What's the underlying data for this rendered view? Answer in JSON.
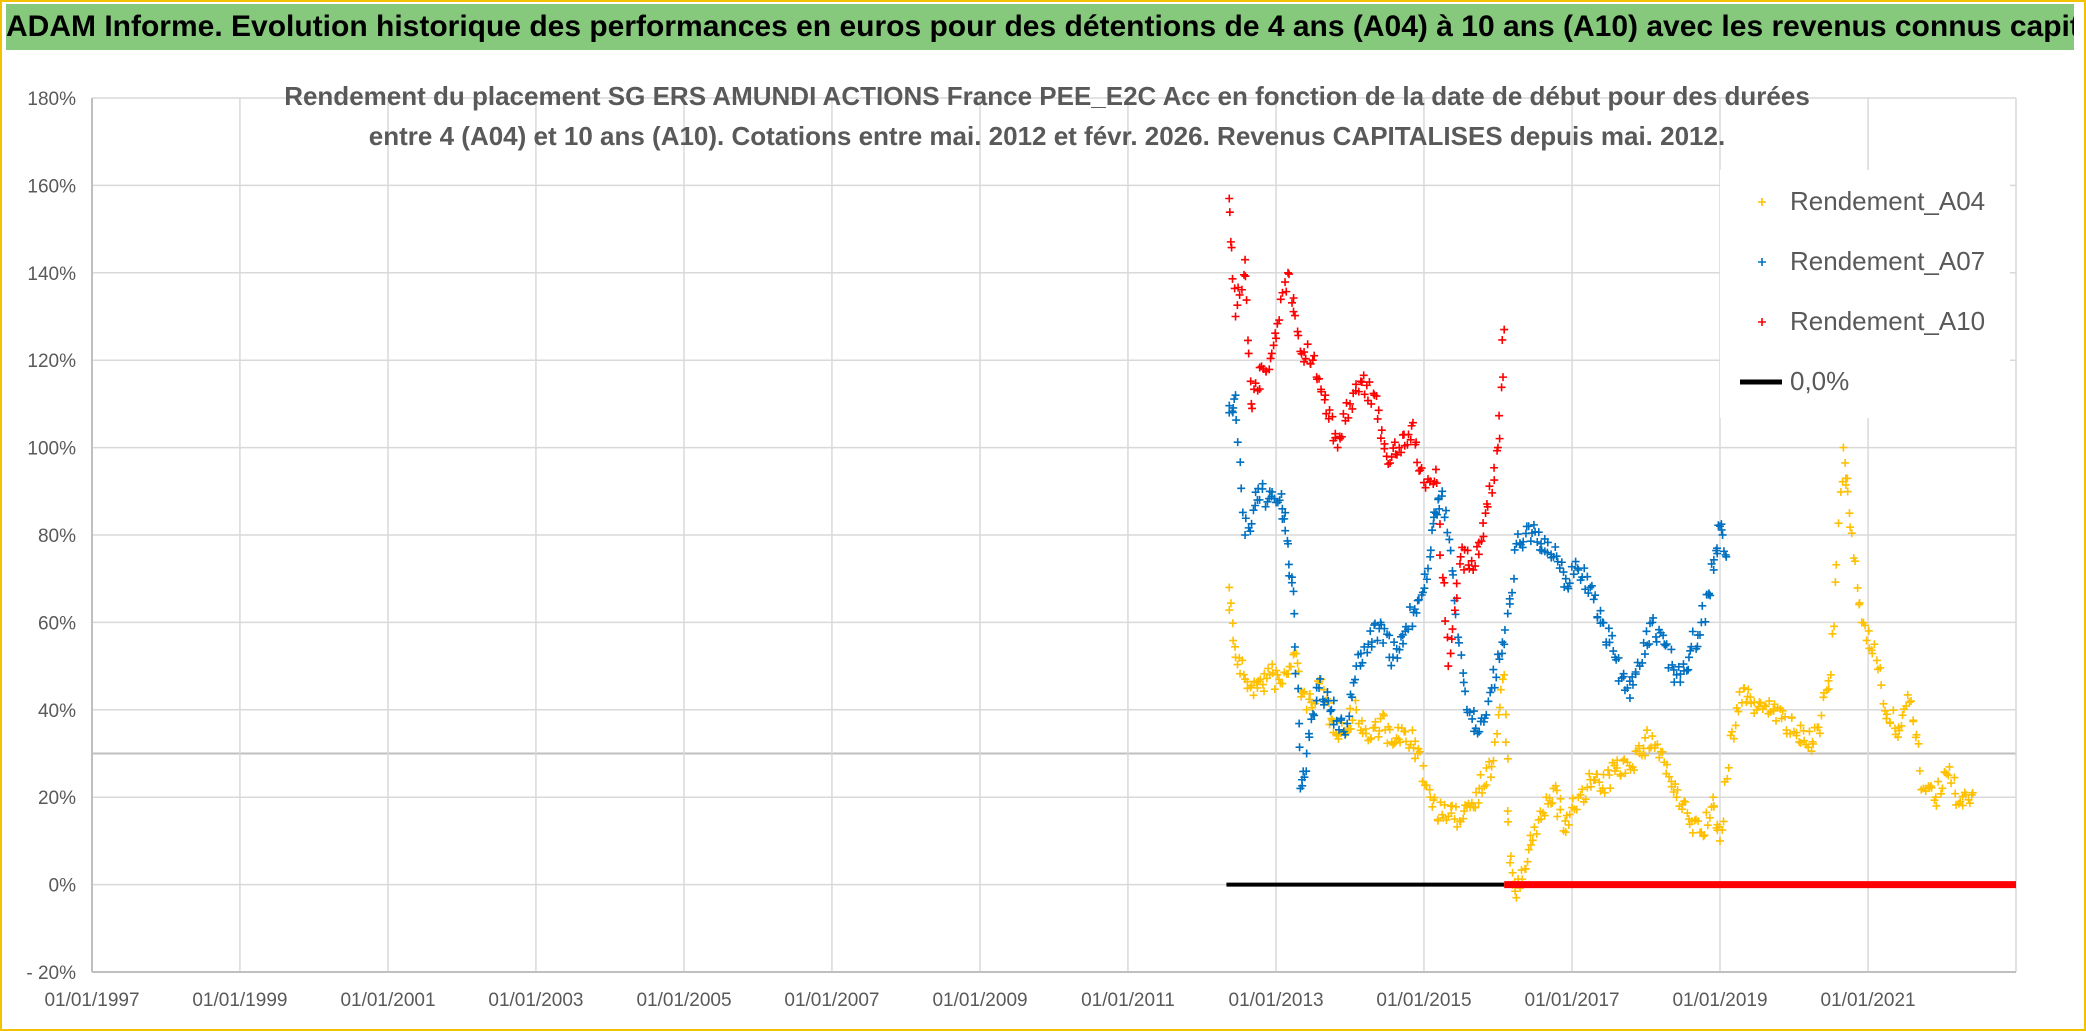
{
  "header": {
    "banner": "ADAM Informe. Evolution historique des performances en euros pour des détentions de 4 ans (A04) à 10 ans (A10) avec les revenus connus capitalisés"
  },
  "colors": {
    "A04": "#ffc000",
    "A07": "#0070c0",
    "A10": "#ff0000",
    "zero": "#000000",
    "banner": "#86c97d",
    "frame": "#f2c200"
  },
  "chart_data": {
    "type": "scatter",
    "title_lines": [
      "Rendement du placement SG ERS AMUNDI ACTIONS France PEE_E2C Acc en fonction de la date de début pour des durées",
      "entre 4 (A04) et 10 ans (A10). Cotations entre mai. 2012 et févr. 2026. Revenus CAPITALISES depuis mai. 2012."
    ],
    "xlabel": "",
    "ylabel": "",
    "x_ticks": [
      "01/01/1997",
      "01/01/1999",
      "01/01/2001",
      "01/01/2003",
      "01/01/2005",
      "01/01/2007",
      "01/01/2009",
      "01/01/2011",
      "01/01/2013",
      "01/01/2015",
      "01/01/2017",
      "01/01/2019",
      "01/01/2021"
    ],
    "y_ticks": [
      "- 20%",
      "0%",
      "20%",
      "40%",
      "60%",
      "80%",
      "100%",
      "120%",
      "140%",
      "160%",
      "180%"
    ],
    "xlim": [
      "1997-01-01",
      "2023-01-01"
    ],
    "ylim": [
      -20,
      180
    ],
    "grid": true,
    "legend_position": "top-right",
    "series": [
      {
        "name": "Rendement_A04",
        "marker": "+",
        "points": [
          [
            "2012-05-15",
            68
          ],
          [
            "2012-06-15",
            52
          ],
          [
            "2012-08-01",
            47
          ],
          [
            "2012-10-01",
            45
          ],
          [
            "2012-12-01",
            48
          ],
          [
            "2013-02-01",
            46
          ],
          [
            "2013-04-01",
            53
          ],
          [
            "2013-06-01",
            40
          ],
          [
            "2013-08-01",
            46
          ],
          [
            "2013-10-01",
            38
          ],
          [
            "2013-12-01",
            35
          ],
          [
            "2014-02-01",
            40
          ],
          [
            "2014-04-01",
            33
          ],
          [
            "2014-06-01",
            38
          ],
          [
            "2014-08-01",
            32
          ],
          [
            "2014-10-01",
            35
          ],
          [
            "2014-12-01",
            30
          ],
          [
            "2015-02-01",
            20
          ],
          [
            "2015-04-01",
            16
          ],
          [
            "2015-06-01",
            15
          ],
          [
            "2015-08-01",
            18
          ],
          [
            "2015-10-01",
            22
          ],
          [
            "2015-12-01",
            27
          ],
          [
            "2016-02-01",
            48
          ],
          [
            "2016-03-01",
            5
          ],
          [
            "2016-04-01",
            -3
          ],
          [
            "2016-06-01",
            8
          ],
          [
            "2016-08-01",
            15
          ],
          [
            "2016-10-01",
            22
          ],
          [
            "2016-12-01",
            12
          ],
          [
            "2017-02-01",
            20
          ],
          [
            "2017-04-01",
            24
          ],
          [
            "2017-06-01",
            22
          ],
          [
            "2017-08-01",
            26
          ],
          [
            "2017-10-01",
            28
          ],
          [
            "2017-12-01",
            30
          ],
          [
            "2018-02-01",
            34
          ],
          [
            "2018-04-01",
            28
          ],
          [
            "2018-06-01",
            20
          ],
          [
            "2018-08-01",
            15
          ],
          [
            "2018-10-01",
            12
          ],
          [
            "2018-12-01",
            18
          ],
          [
            "2019-01-01",
            10
          ],
          [
            "2019-03-01",
            35
          ],
          [
            "2019-05-01",
            45
          ],
          [
            "2019-07-01",
            40
          ],
          [
            "2019-09-01",
            42
          ],
          [
            "2019-11-01",
            38
          ],
          [
            "2020-01-01",
            35
          ],
          [
            "2020-03-01",
            32
          ],
          [
            "2020-05-01",
            36
          ],
          [
            "2020-07-01",
            48
          ],
          [
            "2020-09-01",
            100
          ],
          [
            "2020-10-01",
            85
          ],
          [
            "2020-12-01",
            60
          ],
          [
            "2021-02-01",
            55
          ],
          [
            "2021-04-01",
            38
          ],
          [
            "2021-06-01",
            36
          ],
          [
            "2021-08-01",
            42
          ],
          [
            "2021-10-01",
            22
          ],
          [
            "2021-12-01",
            20
          ],
          [
            "2022-02-01",
            25
          ],
          [
            "2022-04-01",
            19
          ],
          [
            "2022-06-01",
            21
          ]
        ]
      },
      {
        "name": "Rendement_A07",
        "marker": "+",
        "points": [
          [
            "2012-05-15",
            108
          ],
          [
            "2012-06-15",
            112
          ],
          [
            "2012-08-01",
            80
          ],
          [
            "2012-10-01",
            88
          ],
          [
            "2012-12-01",
            90
          ],
          [
            "2013-02-01",
            86
          ],
          [
            "2013-03-01",
            78
          ],
          [
            "2013-04-01",
            62
          ],
          [
            "2013-05-01",
            22
          ],
          [
            "2013-06-01",
            30
          ],
          [
            "2013-08-01",
            45
          ],
          [
            "2013-10-01",
            40
          ],
          [
            "2013-12-01",
            35
          ],
          [
            "2014-02-01",
            50
          ],
          [
            "2014-04-01",
            55
          ],
          [
            "2014-06-01",
            60
          ],
          [
            "2014-08-01",
            52
          ],
          [
            "2014-10-01",
            58
          ],
          [
            "2014-12-01",
            65
          ],
          [
            "2015-02-01",
            75
          ],
          [
            "2015-03-01",
            85
          ],
          [
            "2015-04-01",
            90
          ],
          [
            "2015-06-01",
            65
          ],
          [
            "2015-08-01",
            40
          ],
          [
            "2015-10-01",
            35
          ],
          [
            "2015-12-01",
            45
          ],
          [
            "2016-02-01",
            55
          ],
          [
            "2016-04-01",
            78
          ],
          [
            "2016-06-01",
            82
          ],
          [
            "2016-08-01",
            78
          ],
          [
            "2016-10-01",
            75
          ],
          [
            "2016-12-01",
            70
          ],
          [
            "2017-02-01",
            72
          ],
          [
            "2017-04-01",
            68
          ],
          [
            "2017-06-01",
            60
          ],
          [
            "2017-08-01",
            52
          ],
          [
            "2017-10-01",
            45
          ],
          [
            "2017-12-01",
            50
          ],
          [
            "2018-02-01",
            60
          ],
          [
            "2018-04-01",
            55
          ],
          [
            "2018-06-01",
            48
          ],
          [
            "2018-08-01",
            52
          ],
          [
            "2018-10-01",
            60
          ],
          [
            "2018-12-01",
            72
          ],
          [
            "2019-01-01",
            82
          ],
          [
            "2019-02-01",
            75
          ]
        ]
      },
      {
        "name": "Rendement_A10",
        "marker": "+",
        "points": [
          [
            "2012-05-15",
            157
          ],
          [
            "2012-06-15",
            130
          ],
          [
            "2012-08-01",
            143
          ],
          [
            "2012-09-01",
            110
          ],
          [
            "2012-11-01",
            118
          ],
          [
            "2013-01-01",
            125
          ],
          [
            "2013-03-01",
            140
          ],
          [
            "2013-05-01",
            122
          ],
          [
            "2013-07-01",
            120
          ],
          [
            "2013-09-01",
            112
          ],
          [
            "2013-11-01",
            100
          ],
          [
            "2014-01-01",
            110
          ],
          [
            "2014-03-01",
            115
          ],
          [
            "2014-05-01",
            112
          ],
          [
            "2014-07-01",
            98
          ],
          [
            "2014-09-01",
            100
          ],
          [
            "2014-11-01",
            105
          ],
          [
            "2015-01-01",
            92
          ],
          [
            "2015-03-01",
            95
          ],
          [
            "2015-05-01",
            50
          ],
          [
            "2015-07-01",
            75
          ],
          [
            "2015-09-01",
            72
          ],
          [
            "2015-11-01",
            85
          ],
          [
            "2016-01-01",
            100
          ],
          [
            "2016-02-01",
            127
          ]
        ]
      },
      {
        "name": "0,0%",
        "marker": "line",
        "segments": [
          {
            "from": "2012-05-01",
            "to": "2016-02-01",
            "value": 0,
            "color": "#000000"
          },
          {
            "from": "2016-02-01",
            "to": "2023-01-01",
            "value": 0,
            "color": "#ff0000"
          }
        ]
      }
    ]
  }
}
